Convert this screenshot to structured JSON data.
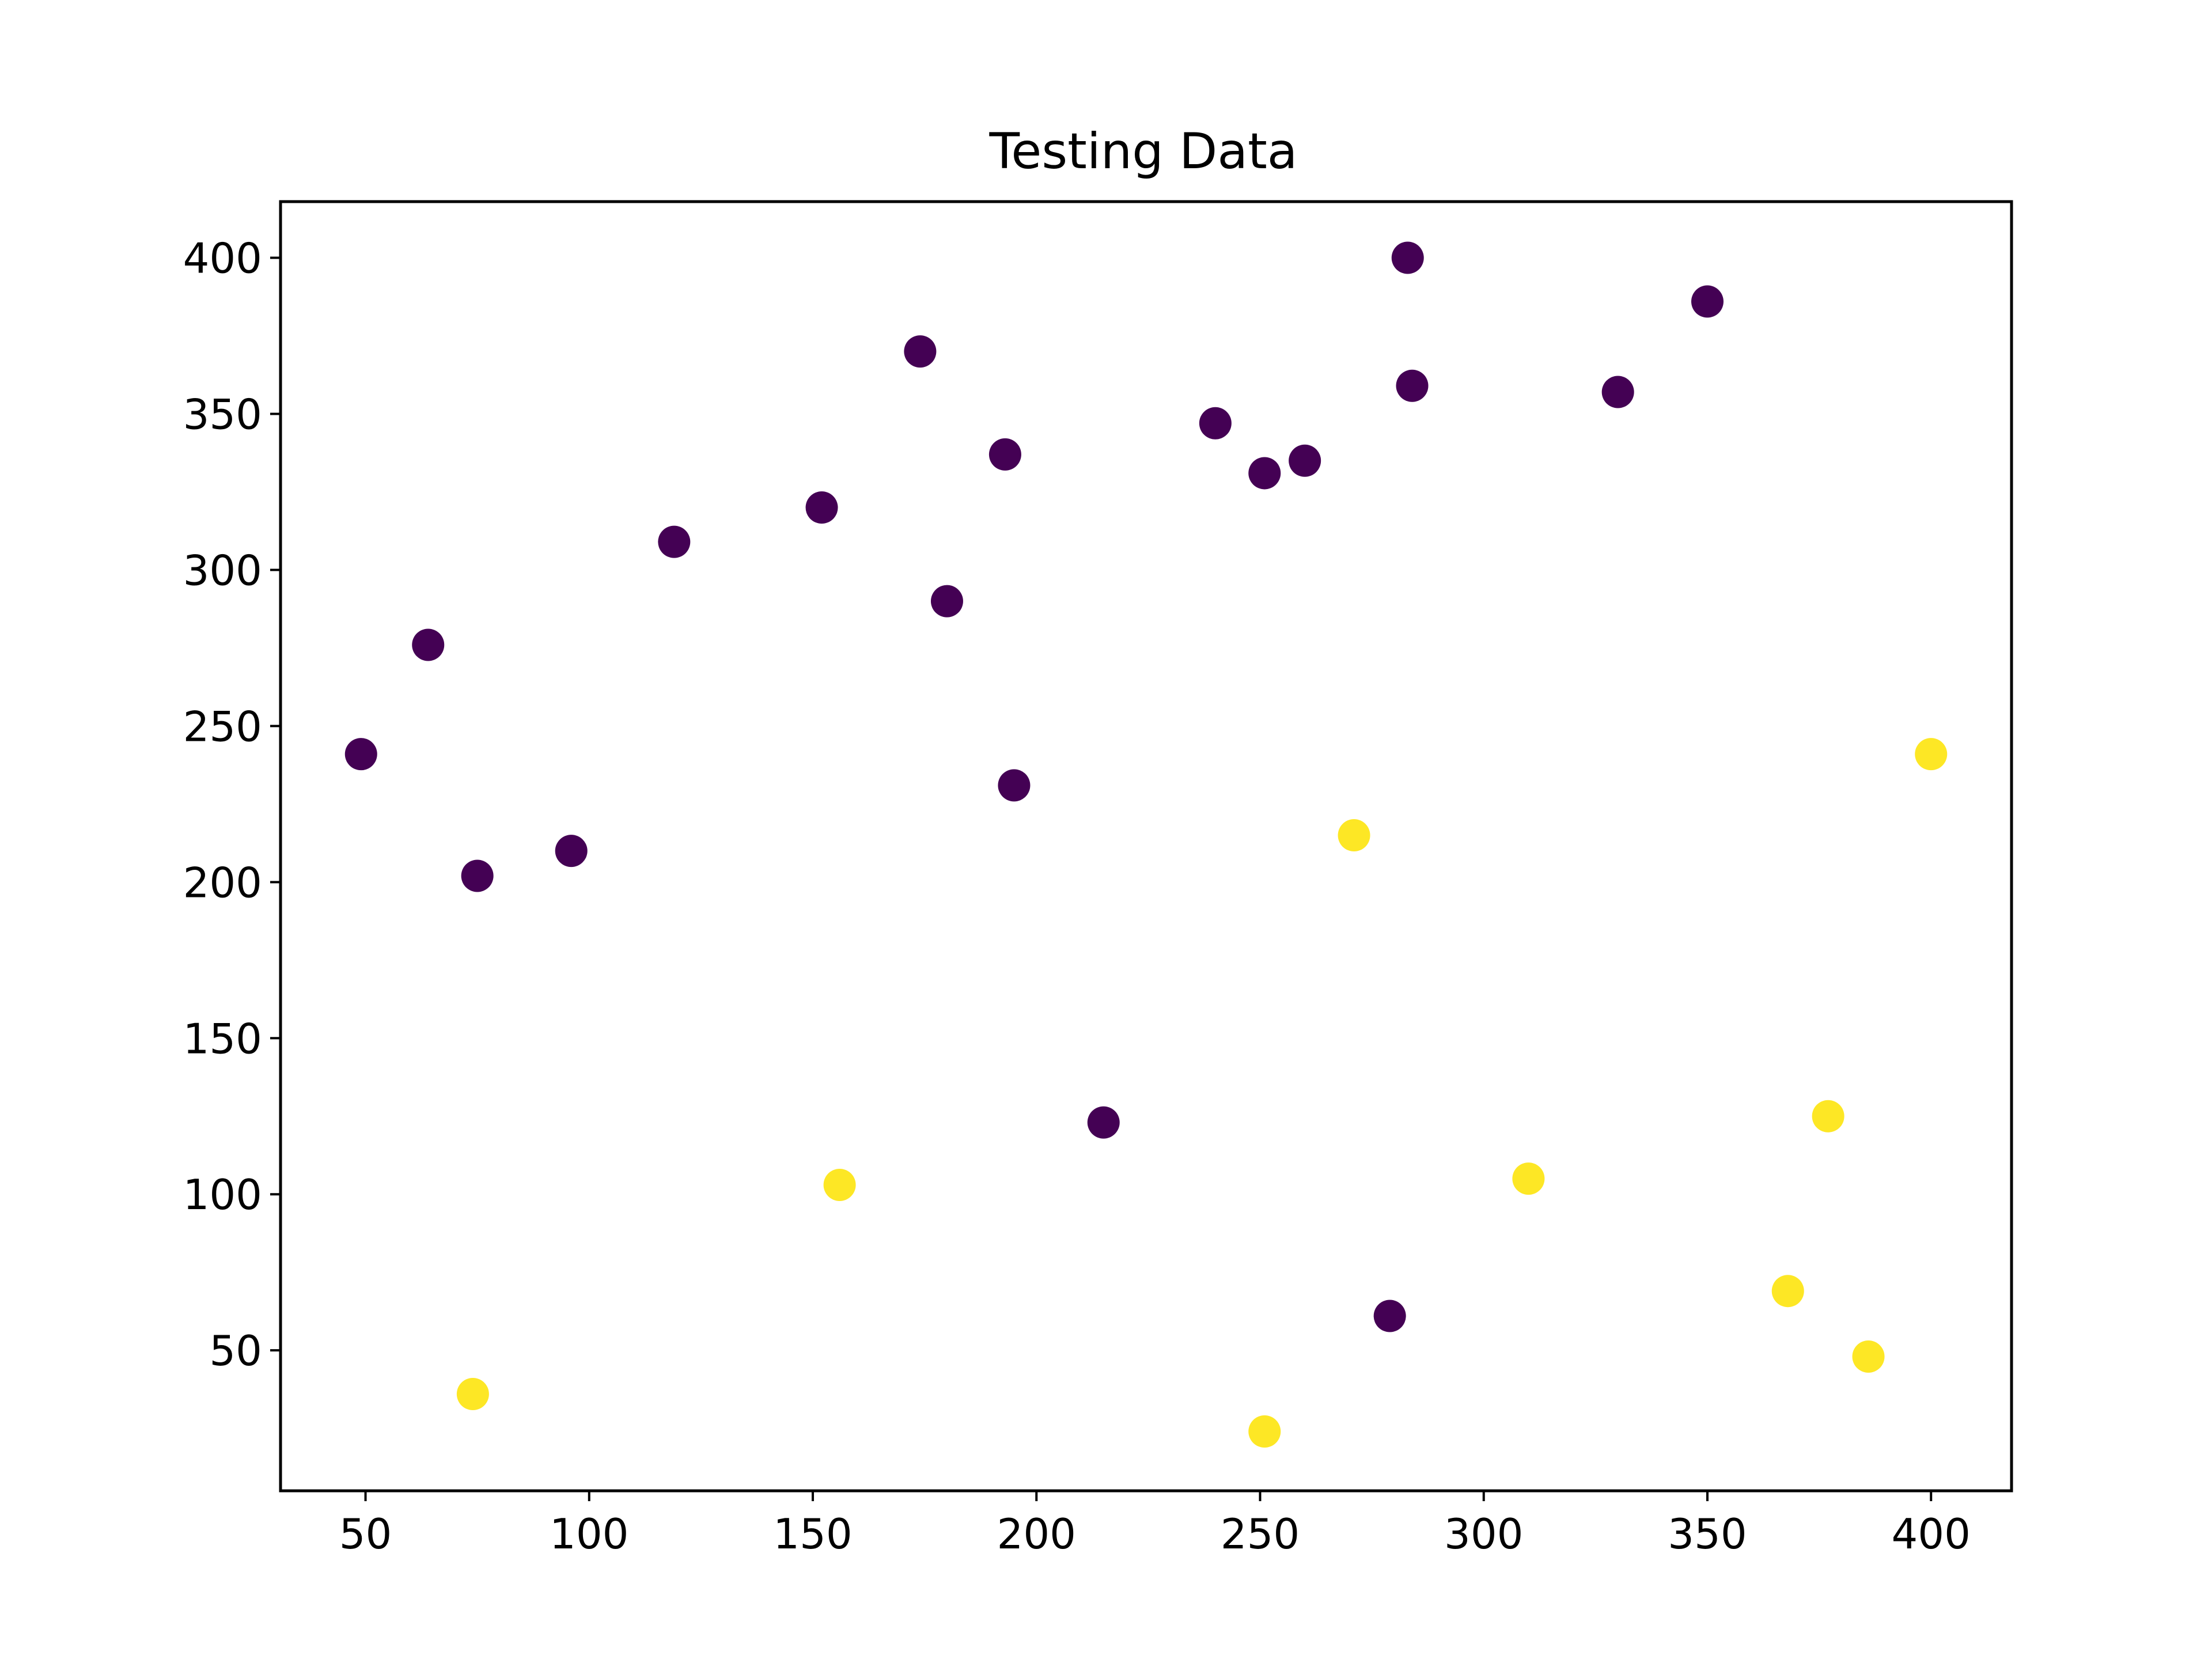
{
  "chart_data": {
    "type": "scatter",
    "title": "Testing Data",
    "xlabel": "",
    "ylabel": "",
    "xlim": [
      31,
      418
    ],
    "ylim": [
      5,
      418
    ],
    "xticks": [
      50,
      100,
      150,
      200,
      250,
      300,
      350,
      400
    ],
    "yticks": [
      50,
      100,
      150,
      200,
      250,
      300,
      350,
      400
    ],
    "grid": false,
    "legend": "none",
    "colors": {
      "class_0": "#440154",
      "class_1": "#fde725"
    },
    "series": [
      {
        "color": "#440154",
        "points": [
          [
            49,
            241
          ],
          [
            64,
            276
          ],
          [
            75,
            202
          ],
          [
            96,
            210
          ],
          [
            119,
            309
          ],
          [
            152,
            320
          ],
          [
            174,
            370
          ],
          [
            180,
            290
          ],
          [
            193,
            337
          ],
          [
            195,
            231
          ],
          [
            215,
            123
          ],
          [
            240,
            347
          ],
          [
            251,
            331
          ],
          [
            260,
            335
          ],
          [
            279,
            61
          ],
          [
            283,
            400
          ],
          [
            284,
            359
          ],
          [
            330,
            357
          ],
          [
            350,
            386
          ]
        ]
      },
      {
        "color": "#fde725",
        "points": [
          [
            74,
            36
          ],
          [
            156,
            103
          ],
          [
            251,
            24
          ],
          [
            271,
            215
          ],
          [
            310,
            105
          ],
          [
            368,
            69
          ],
          [
            377,
            125
          ],
          [
            386,
            48
          ],
          [
            400,
            241
          ]
        ]
      }
    ]
  }
}
